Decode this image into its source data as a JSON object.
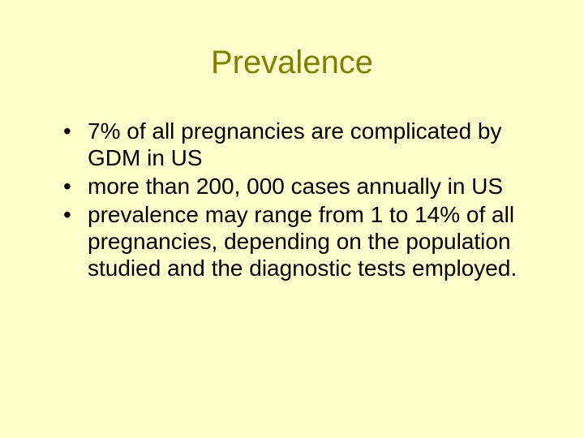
{
  "slide": {
    "title": "Prevalence",
    "bullets": [
      " 7% of all pregnancies are complicated by GDM in US",
      "more than 200, 000 cases annually in US",
      "prevalence may range from 1 to 14% of all pregnancies, depending on the population studied and the diagnostic tests employed."
    ],
    "background_color": "#ffffcc",
    "title_color": "#808000",
    "text_color": "#000000",
    "title_fontsize": 40,
    "body_fontsize": 28
  }
}
